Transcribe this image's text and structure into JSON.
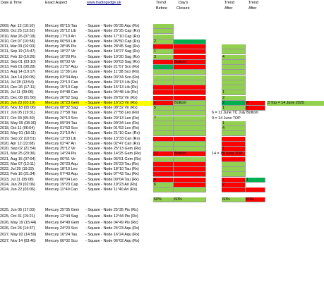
{
  "headers": {
    "date_time": "Date & Time",
    "exact_aspect": "Exact Aspect",
    "site": "www.tradingedge.uk",
    "trend_before_1": "Trend",
    "trend_before_2": "Before",
    "days_closure_1": "Day's",
    "days_closure_2": "Closure",
    "trend_after_1": "Trend",
    "trend_after_2": "After",
    "trend_after2_1": "Trend",
    "trend_after2_2": "After"
  },
  "colors": {
    "green": "#92d050",
    "dark_green": "#00b050",
    "red": "#ff0000",
    "highlight": "#ffff00"
  },
  "rows": [
    {
      "date": "2009, Apr 12 (10:10)",
      "aspect": "Mercury 05°15 Tau",
      "node": "- Square - Node 05°35 Aqu (Rx)",
      "tb": "g",
      "tbt": "",
      "dc": "",
      "dct": "",
      "ta1": "",
      "ta1t": "",
      "ta2": "",
      "ta2t": "",
      "note": ""
    },
    {
      "date": "2009, Oct 25 (13:52)",
      "aspect": "Mercury 25°12 Lib",
      "node": "- Square - Node 25°25 Cap (Rx)",
      "tb": "g",
      "tbt": "",
      "dc": "",
      "dct": "",
      "ta1": "",
      "ta1t": "",
      "ta2": "",
      "ta2t": "",
      "note": ""
    },
    {
      "date": "2010, Mar 26 (07:18)",
      "aspect": "Mercury 17°10 Ari",
      "node": "- Square - Node 17°10 Cap (Rx)",
      "tb": "g",
      "tbt": "",
      "dc": "",
      "dct": "",
      "ta1": "",
      "ta1t": "",
      "ta2": "",
      "ta2t": "",
      "note": ""
    },
    {
      "date": "2010, Oct 07 (10:58)",
      "aspect": "Mercury 06°50 Lib",
      "node": "- Square - Node 06°50 Cap (Rx)",
      "tb": "g",
      "tbt": "2",
      "dc": "dg",
      "dct": "",
      "ta1": "",
      "ta1t": "",
      "ta2": "",
      "ta2t": "",
      "note": ""
    },
    {
      "date": "2011, Mar 09 (02:03)",
      "aspect": "Mercury 28°45 Pis",
      "node": "- Square - Node 28°45 Sag (Rx)",
      "tb": "r",
      "tbt": "",
      "dc": "r",
      "dct": "",
      "ta1": "g",
      "ta1t": "",
      "ta2": "",
      "ta2t": "",
      "note": ""
    },
    {
      "date": "2011, Sep 19 (15:47)",
      "aspect": "Mercury 18°27 Vir",
      "node": "- Square - Node 18°27 Sag (Rx)",
      "tb": "g",
      "tbt": "1",
      "dc": "r",
      "dct": "",
      "ta1": "g",
      "ta1t": "",
      "ta2": "",
      "ta2t": "",
      "note": ""
    },
    {
      "date": "2012, Feb 19 (16:26)",
      "aspect": "Mercury 10°20 Pis",
      "node": "- Square - Node 10°20 Sag (Rx)",
      "tb": "g",
      "tbt": "3",
      "dc": "r",
      "dct": "",
      "ta1": "g",
      "ta1t": "4",
      "ta2": "",
      "ta2t": "",
      "note": ""
    },
    {
      "date": "2012, Sep 01 (03:10)",
      "aspect": "Mercury 00°03 Vir",
      "node": "- Square - Node 00°03 Sag (Rx)",
      "tb": "r",
      "tbt": "",
      "dc": "r",
      "dct": "Bottom",
      "ta1": "g",
      "ta1t": "",
      "ta2": "",
      "ta2t": "",
      "note": ""
    },
    {
      "date": "2013, Feb 01 (00:28)",
      "aspect": "Mercury 21°57 Aqu",
      "node": "- Square - Node 21°57 Sco (Rx)",
      "tb": "dg",
      "tbt": "",
      "dc": "r",
      "dct": "",
      "ta1": "g",
      "ta1t": "",
      "ta2": "",
      "ta2t": "",
      "note": ""
    },
    {
      "date": "2013, Aug 14 (19:17)",
      "aspect": "Mercury 11°38 Leo",
      "node": "- Square - Node 11°38 Sco (Rx)",
      "tb": "g",
      "tbt": "",
      "dc": "g",
      "dct": "",
      "ta1": "g",
      "ta1t": "",
      "ta2": "",
      "ta2t": "",
      "note": ""
    },
    {
      "date": "2014, Jan 14 (00:05)",
      "aspect": "Mercury 03°34 Aqu",
      "node": "- Square - Node 03°34 Sco (Rx)",
      "tb": "g",
      "tbt": "",
      "dc": "g",
      "dct": "",
      "ta1": "g",
      "ta1t": "",
      "ta2": "",
      "ta2t": "",
      "note": ""
    },
    {
      "date": "2014, Jul 28 (13:54)",
      "aspect": "Mercury 23°13 Can",
      "node": "- Square - Node 23°13 Lib (Rx)",
      "tb": "g",
      "tbt": "",
      "dc": "g",
      "dct": "",
      "ta1": "g",
      "ta1t": "",
      "ta2": "",
      "ta2t": "",
      "note": ""
    },
    {
      "date": "2014, Dec 26 (17:11)",
      "aspect": "Mercury 15°13 Cap",
      "node": "- Square - Node 15°13 Lib (Rx)",
      "tb": "r",
      "tbt": "",
      "dc": "r",
      "dct": "",
      "ta1": "g",
      "ta1t": "",
      "ta2": "",
      "ta2t": "",
      "note": ""
    },
    {
      "date": "2015, Jul 11 (09:06)",
      "aspect": "Mercury 04°48 Can",
      "node": "- Square - Node 04°48 Lib (Rx)",
      "tb": "r",
      "tbt": "",
      "dc": "r",
      "dct": "",
      "ta1": "g",
      "ta1t": "1",
      "ta2": "",
      "ta2t": "",
      "note": ""
    },
    {
      "date": "2015, Dec 08 (01:56)",
      "aspect": "Mercury 26°52 Sag",
      "node": "- Square - Node 26°52 Vir (Rx)",
      "tb": "r",
      "tbt": "",
      "dc": "r",
      "dct": "",
      "ta1": "g",
      "ta1t": "2",
      "ta2": "",
      "ta2t": "",
      "note": ""
    },
    {
      "date": "2016, Jun 23 (03:19)",
      "aspect": "Mercury 16°23 Gem",
      "node": "- Square - Node 16°23 Vir (Rx)",
      "tb": "r",
      "tbt": "1",
      "dc": "g",
      "dct": "Bottom",
      "ta1": "dg",
      "ta1t": "2",
      "ta2": "r",
      "ta2t": "4",
      "note": "3  Top = 14 June 2025",
      "hl": true
    },
    {
      "date": "2016, Nov 18 (05:06)",
      "aspect": "Mercury 08°32 Sag",
      "node": "- Square - Node 08°32 Vir (Rx)",
      "tb": "g",
      "tbt": "5",
      "dc": "g",
      "dct": "",
      "ta1": "g",
      "ta1t": "1",
      "ta2": "r",
      "ta2t": "5",
      "note": ""
    },
    {
      "date": "2017, Jun 05 (19:31)",
      "aspect": "Mercury 27°58 Tau",
      "node": "- Square - Node 27°58 Leo (Rx)",
      "tb": "g",
      "tbt": "",
      "dc": "g",
      "dct": "",
      "ta1": "",
      "ta1t": "",
      "ta2": "",
      "ta2t": "",
      "note": "6 = 11 June TC  July Bottom"
    },
    {
      "date": "2017, Oct 30 (05:30)",
      "aspect": "Mercury 20°13 Sco",
      "node": "- Square - Node 20°13 Leo (Rx)",
      "tb": "g",
      "tbt": "7",
      "dc": "g",
      "dct": "",
      "ta1": "",
      "ta1t": "",
      "ta2": "",
      "ta2t": "",
      "note": "9 = 14 June TOP"
    },
    {
      "date": "2018, May 09 (08:36)",
      "aspect": "Mercury 09°34 Tau",
      "node": "- Square - Node 09°34 Leo (Rx)",
      "tb": "g",
      "tbt": "",
      "dc": "g",
      "dct": "",
      "ta1": "g",
      "ta1t": "1",
      "ta2": "",
      "ta2t": "",
      "note": ""
    },
    {
      "date": "2018, Oct 11 (06:04)",
      "aspect": "Mercury 01°53 Sco",
      "node": "- Square - Node 01°53 Leo (Rx)",
      "tb": "g",
      "tbt": "",
      "dc": "g",
      "dct": "",
      "ta1": "g",
      "ta1t": "4",
      "ta2": "",
      "ta2t": "",
      "note": ""
    },
    {
      "date": "2019, May 01 (18:11)",
      "aspect": "Mercury 21°10 Ari",
      "node": "- Square - Node 21°10 Can (Rx)",
      "tb": "g",
      "tbt": "",
      "dc": "g",
      "dct": "",
      "ta1": "g",
      "ta1t": "",
      "ta2": "",
      "ta2t": "",
      "note": ""
    },
    {
      "date": "2019, Sep 22 (10:51)",
      "aspect": "Mercury 13°33 Lib",
      "node": "- Square - Node 13°33 Can (Rx)",
      "tb": "r",
      "tbt": "",
      "dc": "r",
      "dct": "",
      "ta1": "r",
      "ta1t": "",
      "ta2": "",
      "ta2t": "",
      "note": ""
    },
    {
      "date": "2020, Apr 12 (22:08)",
      "aspect": "Mercury 02°47 Ari",
      "node": "- Square - Node 02°47 Can (Rx)",
      "tb": "g",
      "tbt": "",
      "dc": "g",
      "dct": "",
      "ta1": "r",
      "ta1t": "",
      "ta2": "",
      "ta2t": "",
      "note": ""
    },
    {
      "date": "2020, Sep 02 (21:54)",
      "aspect": "Mercury 25°12 Vir",
      "node": "- Square - Node 25°13 Gem (Rx)",
      "tb": "g",
      "tbt": "",
      "dc": "g",
      "dct": "",
      "ta1": "r",
      "ta1t": "1",
      "ta2": "",
      "ta2t": "",
      "note": ""
    },
    {
      "date": "2021, Mar 25 (20:36)",
      "aspect": "Mercury 14°24 Pis",
      "node": "- Square - Node 14°25 Gem (Rx)",
      "tb": "r",
      "tbt": "11",
      "dc": "r",
      "dct": "Bottom",
      "ta1": "r",
      "ta1t": "3",
      "ta2": "",
      "ta2t": "",
      "note": "14 = 19 June TOP"
    },
    {
      "date": "2021, Aug 15 (07:04)",
      "aspect": "Mercury 06°51 Vir",
      "node": "- Square - Node 06°51 Gem (Rx)",
      "tb": "g",
      "tbt": "",
      "dc": "g",
      "dct": "",
      "ta1": "r",
      "ta1t": "",
      "ta2": "",
      "ta2t": "",
      "note": ""
    },
    {
      "date": "2022, Mar 07 (12:11)",
      "aspect": "Mercury 26°23 Aqu",
      "node": "- Square - Node 26°23 Tau (Rx)",
      "tb": "r",
      "tbt": "",
      "dc": "r",
      "dct": "",
      "ta1": "g",
      "ta1t": "",
      "ta2": "",
      "ta2t": "",
      "note": ""
    },
    {
      "date": "2022, Jul 29 (19:33)",
      "aspect": "Mercury 18°10 Leo",
      "node": "- Square - Node 18°10 Tau (Rx)",
      "tb": "r",
      "tbt": "",
      "dc": "r",
      "dct": "",
      "ta1": "g",
      "ta1t": "",
      "ta2": "",
      "ta2t": "",
      "note": ""
    },
    {
      "date": "2023, Feb 16 (21:34)",
      "aspect": "Mercury 07°43 Aqu",
      "node": "- Square - Node 07°43 Tau (Rx)",
      "tb": "r",
      "tbt": "",
      "dc": "r",
      "dct": "",
      "ta1": "g",
      "ta1t": "",
      "ta2": "",
      "ta2t": "",
      "note": ""
    },
    {
      "date": "2023, Jul 11 (05:08)",
      "aspect": "Mercury 00°04 Leo",
      "node": "- Square - Node 00°04 Tau (Rx)",
      "tb": "r",
      "tbt": "4",
      "dc": "r",
      "dct": "",
      "ta1": "r",
      "ta1t": "1",
      "ta2": "dg",
      "ta2t": "1",
      "note": ""
    },
    {
      "date": "2024, Jan 29 (02:06)",
      "aspect": "Mercury 19°23 Cap",
      "node": "- Square - Node 19°23 Ari (Rx)",
      "tb": "g",
      "tbt": "6",
      "dc": "r",
      "dct": "",
      "ta1": "r",
      "ta1t": "2",
      "ta2": "",
      "ta2t": "",
      "note": ""
    },
    {
      "date": "2024, Jun 22 (03:06)",
      "aspect": "Mercury 11°40 Can",
      "node": "- Square - Node 11°40 Ari (Rx)",
      "tb": "g",
      "tbt": "",
      "dc": "g",
      "dct": "",
      "ta1": "r",
      "ta1t": "",
      "ta2": "r",
      "ta2t": "",
      "note": ""
    }
  ],
  "summary": {
    "tb": "60%",
    "dc": "60%",
    "ta1": "60%",
    "ta2": "80%"
  },
  "future_rows": [
    {
      "date": "2025, Jun 05 (17:03)",
      "aspect": "Mercury 25°35 Gem",
      "node": "- Square - Node 25°35 Pis (Rx)"
    },
    {
      "date": "2025, Oct 31 (19:21)",
      "aspect": "Mercury 12°44 Sag",
      "node": "- Square - Node 12°44 Pis (Rx)"
    },
    {
      "date": "2026, May 19 (15:44)",
      "aspect": "Mercury 04°49 Gem",
      "node": "- Square - Node 04°49 Pis (Rx)"
    },
    {
      "date": "2026, Oct 26 (14:37)",
      "aspect": "Mercury 24°23 Sco",
      "node": "- Square - Node 24°23 Aqu (Rx)"
    },
    {
      "date": "2027, May 02 (14:59)",
      "aspect": "Mercury 16°24 Tau",
      "node": "- Square - Node 16°24 Aqu (Rx)"
    },
    {
      "date": "2027, Nov 14 (03:46)",
      "aspect": "Mercury 06°02 Sco",
      "node": "- Square - Node 06°02 Aqu (Rx)"
    }
  ]
}
